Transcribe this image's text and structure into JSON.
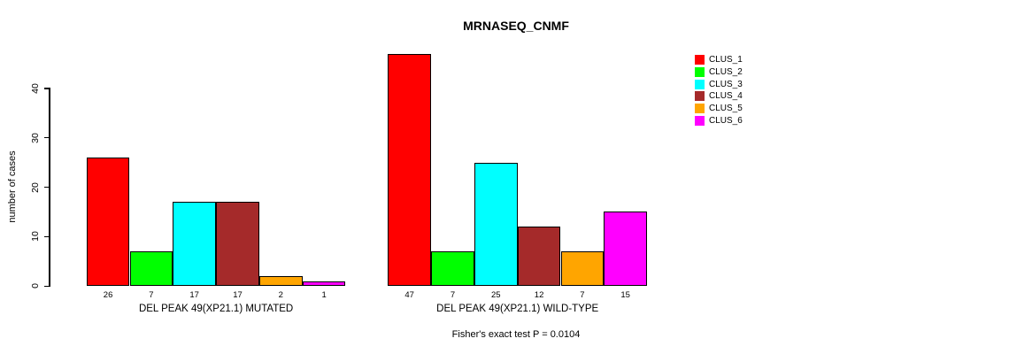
{
  "chart_data": {
    "type": "bar",
    "title": "MRNASEQ_CNMF",
    "ylabel": "number of cases",
    "xlabel": "",
    "yticks": [
      0,
      10,
      20,
      30,
      40
    ],
    "ylim": [
      0,
      47
    ],
    "grid": false,
    "legend_position": "right",
    "legend": [
      {
        "label": "CLUS_1",
        "color": "#FF0000"
      },
      {
        "label": "CLUS_2",
        "color": "#00FF00"
      },
      {
        "label": "CLUS_3",
        "color": "#00FFFF"
      },
      {
        "label": "CLUS_4",
        "color": "#A52A2A"
      },
      {
        "label": "CLUS_5",
        "color": "#FFA500"
      },
      {
        "label": "CLUS_6",
        "color": "#FF00FF"
      }
    ],
    "groups": [
      {
        "label": "DEL PEAK 49(XP21.1) MUTATED",
        "values": [
          26,
          7,
          17,
          17,
          2,
          1
        ],
        "value_labels": [
          "26",
          "7",
          "17",
          "17",
          "2",
          "1"
        ]
      },
      {
        "label": "DEL PEAK 49(XP21.1) WILD-TYPE",
        "values": [
          47,
          7,
          25,
          12,
          7,
          15
        ],
        "value_labels": [
          "47",
          "7",
          "25",
          "12",
          "7",
          "15"
        ]
      }
    ],
    "annotation": "Fisher's exact test P = 0.0104"
  }
}
